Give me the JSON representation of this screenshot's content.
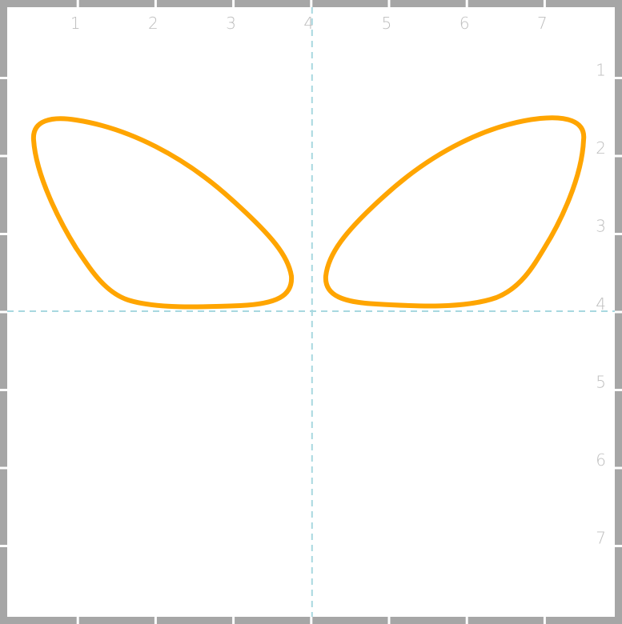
{
  "canvas": {
    "background": "#ffffff",
    "frame_color": "#a6a6a6",
    "tick_color": "#ffffff",
    "label_color": "#bdbdbd",
    "guide_color": "#a8d8e0"
  },
  "grid": {
    "x_labels": [
      "1",
      "2",
      "3",
      "4",
      "5",
      "6",
      "7"
    ],
    "y_labels": [
      "1",
      "2",
      "3",
      "4",
      "5",
      "6",
      "7"
    ],
    "x_range": [
      0,
      8
    ],
    "y_range": [
      0,
      8
    ]
  },
  "guides": {
    "vertical_x": 4,
    "horizontal_y": 4,
    "style": "dashed"
  },
  "shapes": [
    {
      "name": "left-wing",
      "color": "#ffa500",
      "fill": "none",
      "description_points": [
        [
          0.45,
          1.9
        ],
        [
          0.8,
          1.55
        ],
        [
          1.9,
          1.8
        ],
        [
          3.3,
          2.8
        ],
        [
          3.6,
          3.7
        ],
        [
          2.4,
          4.0
        ],
        [
          1.3,
          3.8
        ],
        [
          0.5,
          2.2
        ]
      ]
    },
    {
      "name": "right-wing",
      "color": "#ffa500",
      "fill": "none",
      "description_points": [
        [
          7.55,
          1.9
        ],
        [
          7.2,
          1.55
        ],
        [
          6.1,
          1.8
        ],
        [
          4.7,
          2.8
        ],
        [
          4.4,
          3.7
        ],
        [
          5.6,
          4.0
        ],
        [
          6.7,
          3.8
        ],
        [
          7.5,
          2.2
        ]
      ]
    }
  ]
}
